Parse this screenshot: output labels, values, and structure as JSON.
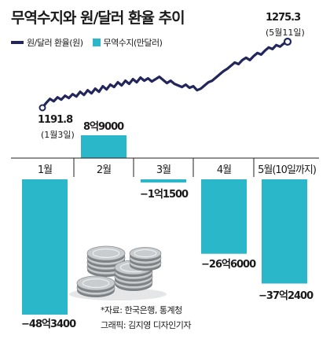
{
  "title": "무역수지와 원/달러 환율 추이",
  "legend": {
    "line": "원/달러 환율(원)",
    "bar": "무역수지(만달러)"
  },
  "colors": {
    "line": "#22265a",
    "bar": "#2ab7ca"
  },
  "rate": {
    "start": {
      "value": "1191.8",
      "date": "(1월3일)"
    },
    "end": {
      "value": "1275.3",
      "date": "(5월11일)"
    }
  },
  "notes": {
    "source": "*자료: 한국은행, 통계청",
    "credit": "그래픽: 김지영 디자인기자"
  },
  "chart_data": [
    {
      "type": "bar",
      "categories": [
        "1월",
        "2월",
        "3월",
        "4월",
        "5월(10일까지)"
      ],
      "values": [
        -483400,
        89000,
        -11500,
        -266000,
        -372400
      ],
      "value_labels": [
        "−48억3400",
        "8억9000",
        "−1억1500",
        "−26억6000",
        "−37억2400"
      ],
      "series_name": "무역수지(만달러)"
    },
    {
      "type": "line",
      "series_name": "원/달러 환율(원)",
      "start_value": 1191.8,
      "end_value": 1275.3,
      "x_range": [
        "1월3일",
        "5월11일"
      ],
      "values": [
        1191.8,
        1198,
        1203,
        1200,
        1205,
        1202,
        1207,
        1204,
        1209,
        1206,
        1212,
        1208,
        1214,
        1210,
        1216,
        1212,
        1219,
        1215,
        1221,
        1218,
        1224,
        1220,
        1226,
        1222,
        1228,
        1224,
        1230,
        1226,
        1229,
        1225,
        1228,
        1231,
        1227,
        1223,
        1226,
        1222,
        1220,
        1218,
        1221,
        1217,
        1219,
        1214,
        1216,
        1220,
        1224,
        1226,
        1230,
        1234,
        1238,
        1241,
        1245,
        1249,
        1247,
        1252,
        1255,
        1252,
        1257,
        1261,
        1259,
        1264,
        1268,
        1266,
        1271,
        1269,
        1273,
        1275.3
      ]
    }
  ]
}
